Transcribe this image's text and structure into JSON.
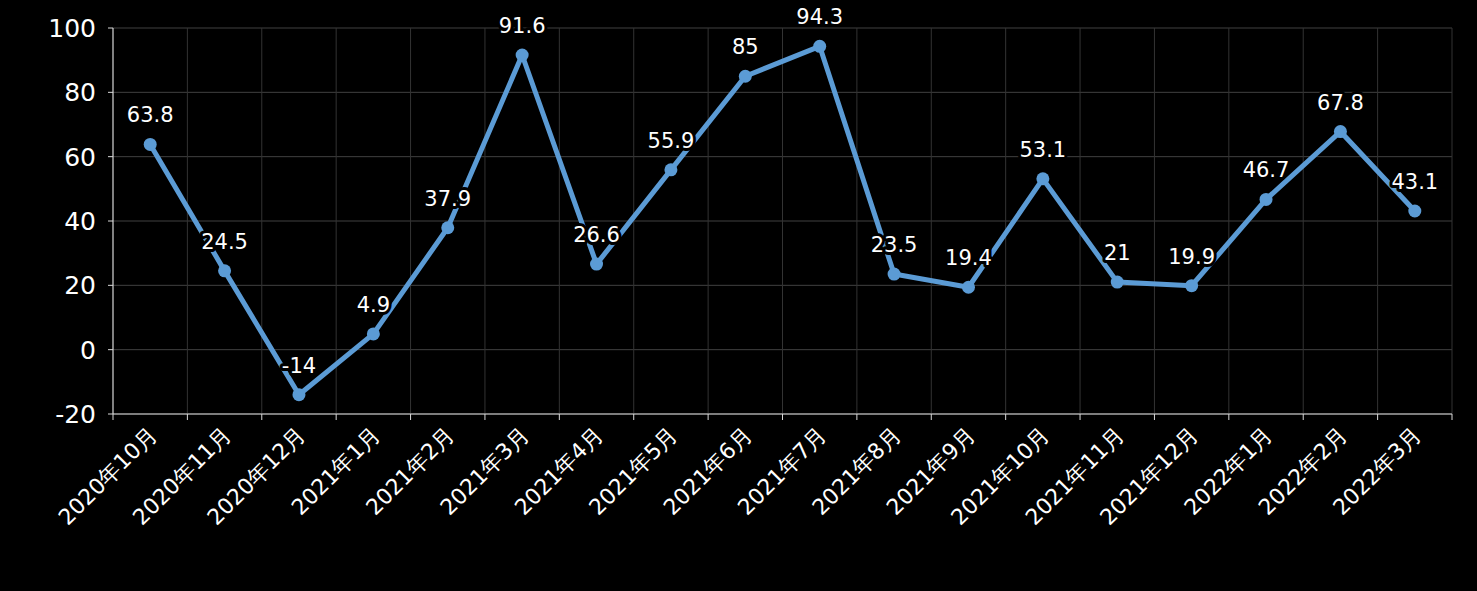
{
  "chart_data": {
    "type": "line",
    "categories": [
      "2020年10月",
      "2020年11月",
      "2020年12月",
      "2021年1月",
      "2021年2月",
      "2021年3月",
      "2021年4月",
      "2021年5月",
      "2021年6月",
      "2021年7月",
      "2021年8月",
      "2021年9月",
      "2021年10月",
      "2021年11月",
      "2021年12月",
      "2022年1月",
      "2022年2月",
      "2022年3月"
    ],
    "values": [
      63.8,
      24.5,
      -14,
      4.9,
      37.9,
      91.6,
      26.6,
      55.9,
      85,
      94.3,
      23.5,
      19.4,
      53.1,
      21,
      19.9,
      46.7,
      67.8,
      43.1
    ],
    "color": "#5b9bd5",
    "marker": "circle",
    "ylim": [
      -20,
      100
    ],
    "yticks": [
      -20,
      0,
      20,
      40,
      60,
      80,
      100
    ],
    "grid": true,
    "data_labels": true
  }
}
